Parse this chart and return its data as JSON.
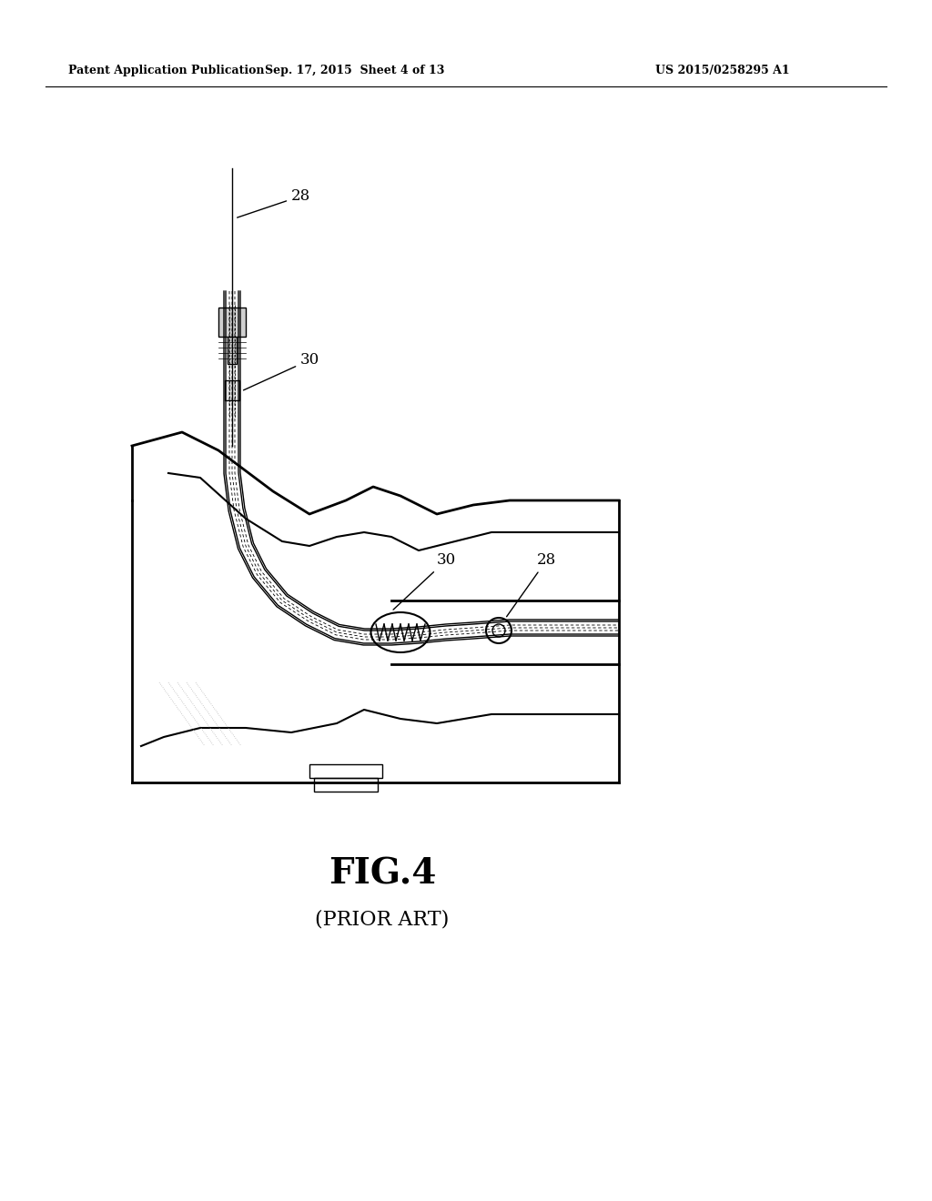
{
  "background_color": "#ffffff",
  "header_left": "Patent Application Publication",
  "header_center": "Sep. 17, 2015  Sheet 4 of 13",
  "header_right": "US 2015/0258295 A1",
  "fig_label": "FIG.4",
  "fig_sublabel": "(PRIOR ART)",
  "label_28_upper": "28",
  "label_30_upper": "30",
  "label_30_lower": "30",
  "label_28_lower": "28",
  "line_color": "#000000",
  "light_gray": "#cccccc",
  "dashed_color": "#aaaaaa"
}
